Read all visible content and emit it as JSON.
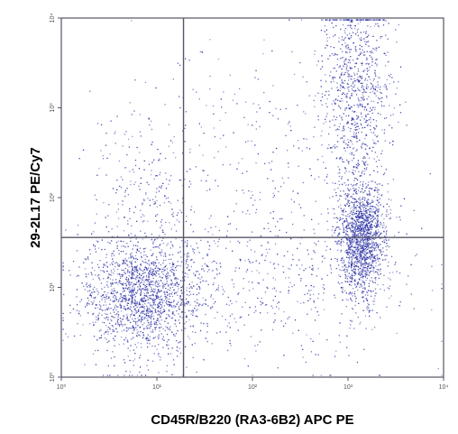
{
  "chart_data": {
    "type": "scatter",
    "title": "",
    "xlabel": "CD45R/B220 (RA3-6B2) APC PE",
    "ylabel": "29-2L17 PE/Cy7",
    "x_scale": "log",
    "y_scale": "log",
    "xlim": [
      1,
      10000
    ],
    "ylim": [
      1,
      10000
    ],
    "x_ticks": [
      "10⁰",
      "10¹",
      "10²",
      "10³",
      "10⁴"
    ],
    "y_ticks": [
      "10⁰",
      "10¹",
      "10²",
      "10³",
      "10⁴"
    ],
    "quadrant_gate": {
      "x": 19,
      "y": 36
    },
    "grid": false,
    "point_color": "#2a2fa3",
    "line_color": "#555566",
    "populations": [
      {
        "center_x": 7,
        "center_y": 8,
        "count": 1700
      },
      {
        "center_x": 1400,
        "center_y": 35,
        "count": 1500
      },
      {
        "center_x": 1200,
        "center_y": 1500,
        "count": 900
      },
      {
        "center_x": 8,
        "center_y": 120,
        "count": 250
      },
      {
        "center_x": 200,
        "center_y": 12,
        "count": 500
      },
      {
        "center_x": 150,
        "center_y": 400,
        "count": 200
      }
    ]
  }
}
